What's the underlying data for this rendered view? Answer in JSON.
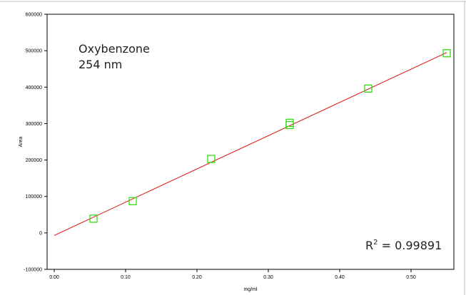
{
  "chart_data": {
    "type": "scatter",
    "title": "",
    "xlabel": "mg/ml",
    "ylabel": "Area",
    "xlim": [
      -0.01,
      0.56
    ],
    "ylim": [
      -100000,
      600000
    ],
    "x_ticks": [
      0.0,
      0.1,
      0.2,
      0.3,
      0.4,
      0.5
    ],
    "x_tick_labels": [
      "0.00",
      "0.10",
      "0.20",
      "0.30",
      "0.40",
      "0.50"
    ],
    "y_ticks": [
      -100000,
      0,
      100000,
      200000,
      300000,
      400000,
      500000,
      600000
    ],
    "y_tick_labels": [
      "-100000",
      "0",
      "100000",
      "200000",
      "300000",
      "400000",
      "500000",
      "600000"
    ],
    "grid": false,
    "annotations": {
      "compound": "Oxybenzone",
      "wavelength": "254 nm",
      "r2_prefix": "R",
      "r2_sup": "2",
      "r2_suffix": " = 0.99891"
    },
    "fit": {
      "x": [
        0.0,
        0.55
      ],
      "y": [
        -7000,
        495000
      ],
      "color": "#e01010"
    },
    "series": [
      {
        "marker": "square",
        "color": "#33dd11",
        "points": [
          {
            "x": 0.055,
            "y": 39000
          },
          {
            "x": 0.11,
            "y": 87000
          },
          {
            "x": 0.22,
            "y": 203000
          },
          {
            "x": 0.33,
            "y": 296000
          },
          {
            "x": 0.33,
            "y": 302000
          },
          {
            "x": 0.44,
            "y": 396000
          },
          {
            "x": 0.55,
            "y": 493000
          }
        ]
      }
    ]
  }
}
